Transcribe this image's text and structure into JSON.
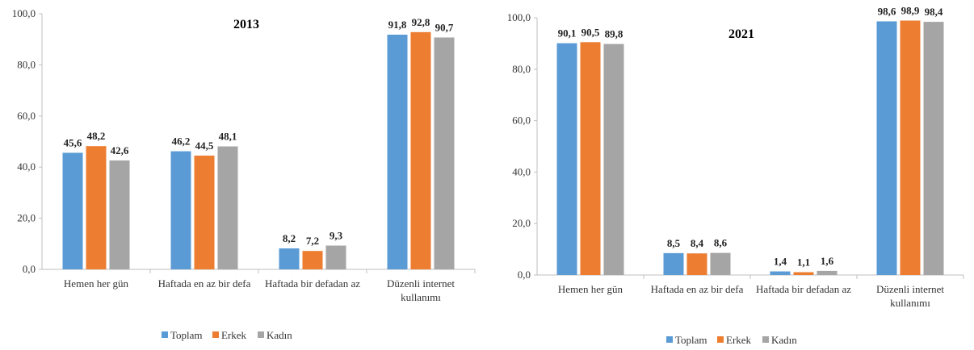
{
  "chart_data": [
    {
      "type": "bar",
      "title": "2013",
      "categories": [
        "Hemen her gün",
        "Haftada en az bir defa",
        "Haftada bir defadan az",
        "Düzenli internet kullanımı"
      ],
      "series": [
        {
          "name": "Toplam",
          "color": "#5B9BD5",
          "values": [
            45.6,
            46.2,
            8.2,
            91.8
          ],
          "labels": [
            "45,6",
            "46,2",
            "8,2",
            "91,8"
          ]
        },
        {
          "name": "Erkek",
          "color": "#ED7D31",
          "values": [
            48.2,
            44.5,
            7.2,
            92.8
          ],
          "labels": [
            "48,2",
            "44,5",
            "7,2",
            "92,8"
          ]
        },
        {
          "name": "Kadın",
          "color": "#A5A5A5",
          "values": [
            42.6,
            48.1,
            9.3,
            90.7
          ],
          "labels": [
            "42,6",
            "48,1",
            "9,3",
            "90,7"
          ]
        }
      ],
      "ylim": [
        0,
        100
      ],
      "yticks": [
        "0,0",
        "20,0",
        "40,0",
        "60,0",
        "80,0",
        "100,0"
      ],
      "legend_position": "bottom"
    },
    {
      "type": "bar",
      "title": "2021",
      "categories": [
        "Hemen her gün",
        "Haftada en az bir defa",
        "Haftada bir defadan az",
        "Düzenli internet kullanımı"
      ],
      "series": [
        {
          "name": "Toplam",
          "color": "#5B9BD5",
          "values": [
            90.1,
            8.5,
            1.4,
            98.6
          ],
          "labels": [
            "90,1",
            "8,5",
            "1,4",
            "98,6"
          ]
        },
        {
          "name": "Erkek",
          "color": "#ED7D31",
          "values": [
            90.5,
            8.4,
            1.1,
            98.9
          ],
          "labels": [
            "90,5",
            "8,4",
            "1,1",
            "98,9"
          ]
        },
        {
          "name": "Kadın",
          "color": "#A5A5A5",
          "values": [
            89.8,
            8.6,
            1.6,
            98.4
          ],
          "labels": [
            "89,8",
            "8,6",
            "1,6",
            "98,4"
          ]
        }
      ],
      "ylim": [
        0,
        100
      ],
      "yticks": [
        "0,0",
        "20,0",
        "40,0",
        "60,0",
        "80,0",
        "100,0"
      ],
      "legend_position": "bottom"
    }
  ]
}
